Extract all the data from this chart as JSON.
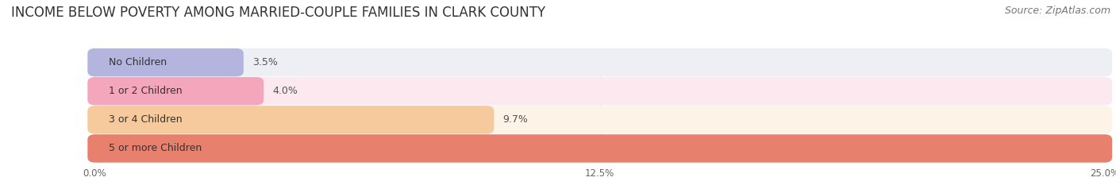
{
  "title": "INCOME BELOW POVERTY AMONG MARRIED-COUPLE FAMILIES IN CLARK COUNTY",
  "source": "Source: ZipAtlas.com",
  "categories": [
    "No Children",
    "1 or 2 Children",
    "3 or 4 Children",
    "5 or more Children"
  ],
  "values": [
    3.5,
    4.0,
    9.7,
    25.0
  ],
  "bar_colors": [
    "#b3b5df",
    "#f4a6bc",
    "#f7ca9e",
    "#e8806e"
  ],
  "bar_bg_colors": [
    "#eeeef5",
    "#fce9ef",
    "#fdf3e7",
    "#fce9e7"
  ],
  "xlim": [
    0,
    25.0
  ],
  "xticks": [
    0.0,
    12.5,
    25.0
  ],
  "xticklabels": [
    "0.0%",
    "12.5%",
    "25.0%"
  ],
  "title_fontsize": 12,
  "source_fontsize": 9,
  "label_fontsize": 9,
  "value_fontsize": 9,
  "background_color": "#ffffff"
}
